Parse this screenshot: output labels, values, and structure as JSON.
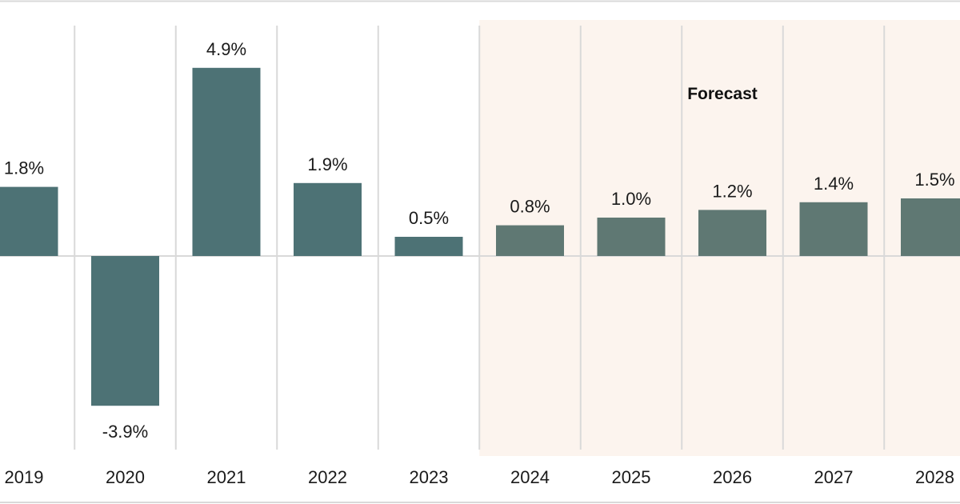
{
  "chart_data": {
    "type": "bar",
    "categories": [
      "2019",
      "2020",
      "2021",
      "2022",
      "2023",
      "2024",
      "2025",
      "2026",
      "2027",
      "2028"
    ],
    "values": [
      1.8,
      -3.9,
      4.9,
      1.9,
      0.5,
      0.8,
      1.0,
      1.2,
      1.4,
      1.5
    ],
    "value_labels": [
      "1.8%",
      "-3.9%",
      "4.9%",
      "1.9%",
      "0.5%",
      "0.8%",
      "1.0%",
      "1.2%",
      "1.4%",
      "1.5%"
    ],
    "forecast_from": "2024",
    "forecast_label": "Forecast",
    "title": "",
    "xlabel": "",
    "ylabel": "",
    "ylim": [
      -4.2,
      5.3
    ],
    "grid": "vertical",
    "legend": "none"
  },
  "colors": {
    "actual_bar": "#4d7275",
    "forecast_bar": "#5f7873",
    "forecast_background": "#fcf4ee",
    "gridline": "#d9d9d9",
    "baseline": "#d9d9d9",
    "text": "#1a1a1a"
  }
}
